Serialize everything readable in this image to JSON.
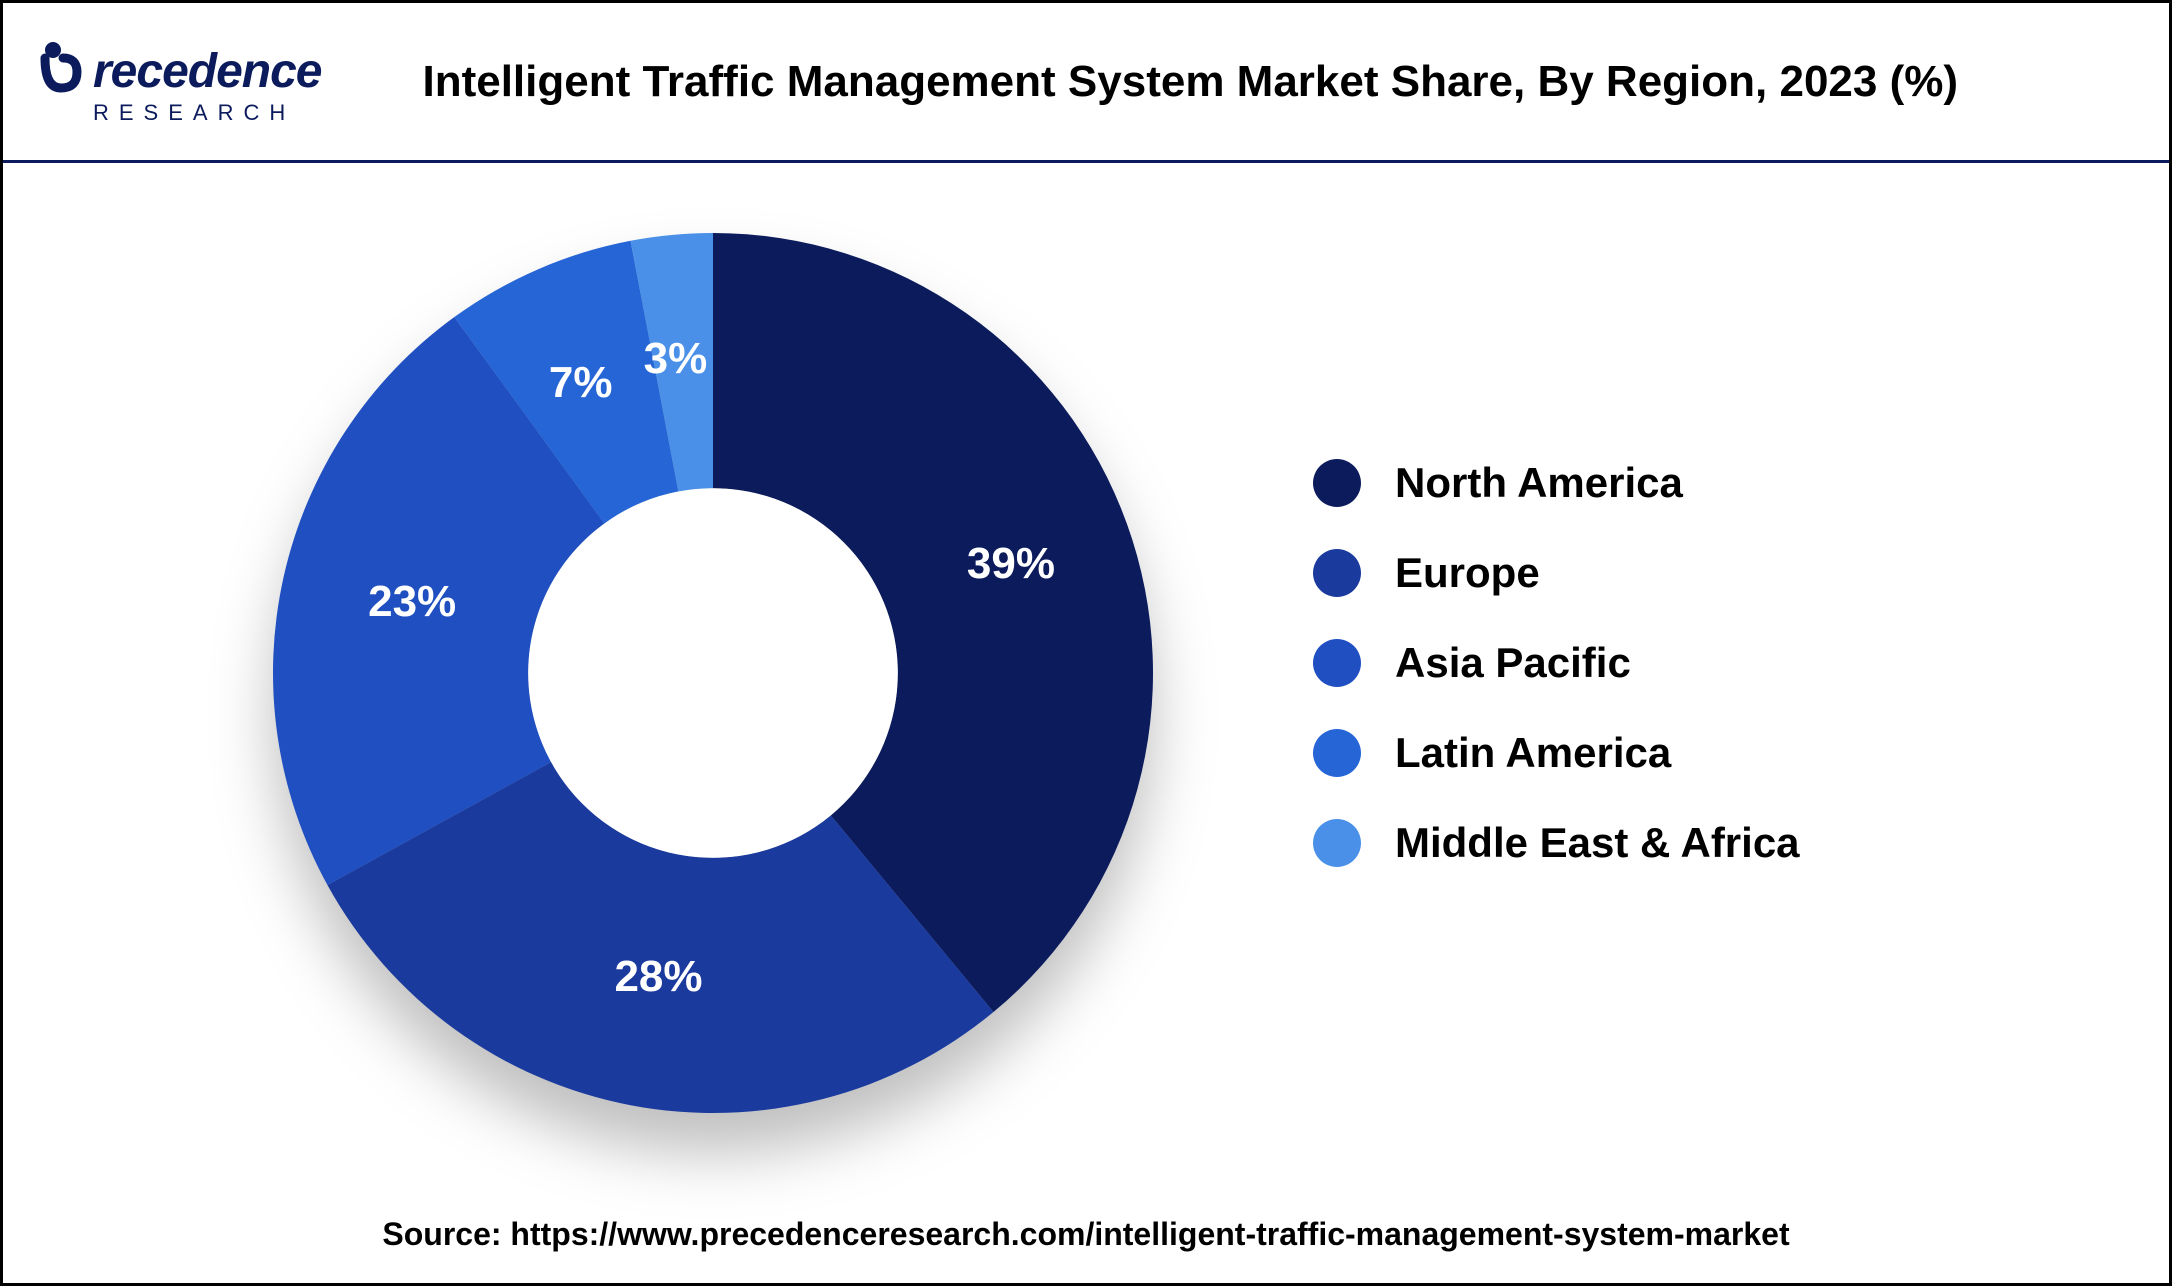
{
  "header": {
    "logo_main": "recedence",
    "logo_sub": "RESEARCH",
    "title": "Intelligent Traffic Management System Market Share, By Region, 2023 (%)"
  },
  "chart": {
    "type": "donut",
    "inner_radius_ratio": 0.42,
    "background_color": "#ffffff",
    "slices": [
      {
        "label": "North America",
        "value": 39,
        "color": "#0b1b5c",
        "text_color": "#ffffff"
      },
      {
        "label": "Europe",
        "value": 28,
        "color": "#1a3a9e",
        "text_color": "#ffffff"
      },
      {
        "label": "Asia Pacific",
        "value": 23,
        "color": "#1f4fc0",
        "text_color": "#ffffff"
      },
      {
        "label": "Latin America",
        "value": 7,
        "color": "#2565d6",
        "text_color": "#ffffff"
      },
      {
        "label": "Middle East & Africa",
        "value": 3,
        "color": "#4a90e8",
        "text_color": "#ffffff"
      }
    ],
    "label_fontsize": 44,
    "label_fontweight": 700,
    "start_angle_deg": -90,
    "shadow_color": "rgba(0,0,0,0.25)"
  },
  "legend": {
    "swatch_shape": "circle",
    "swatch_size": 48,
    "label_fontsize": 42,
    "label_fontweight": 700
  },
  "source": {
    "prefix": "Source: ",
    "url": "https://www.precedenceresearch.com/intelligent-traffic-management-system-market"
  }
}
